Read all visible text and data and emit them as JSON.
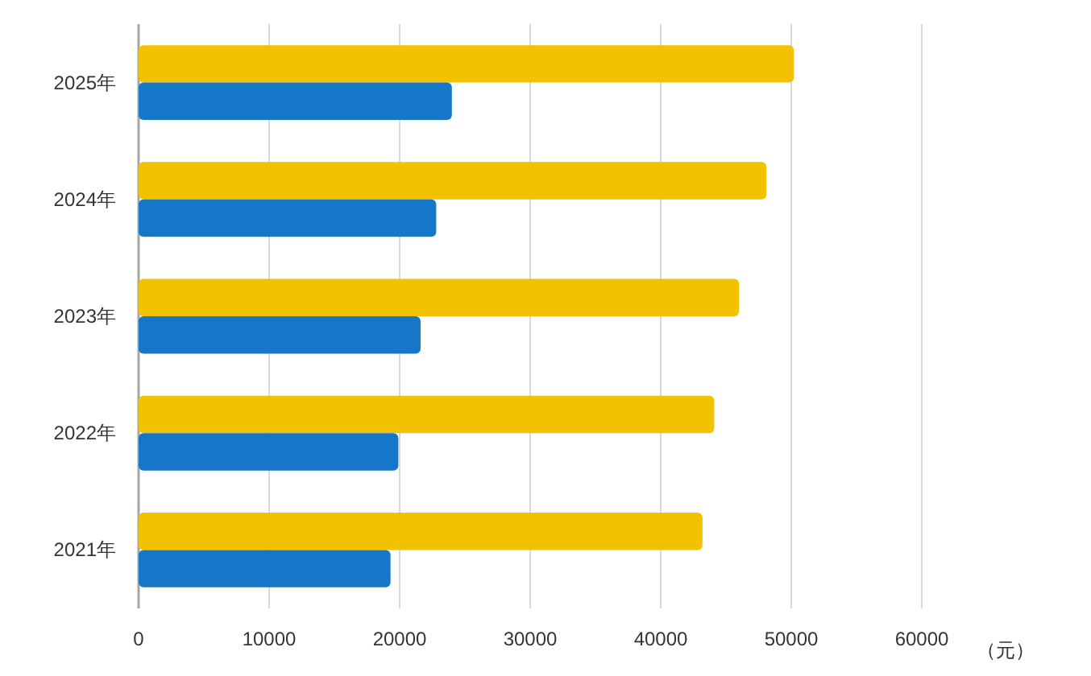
{
  "chart_data": {
    "type": "bar",
    "orientation": "horizontal",
    "categories": [
      "2025年",
      "2024年",
      "2023年",
      "2022年",
      "2021年"
    ],
    "xlabel": "（元）",
    "series": [
      {
        "color": "#f2c200",
        "values": [
          50200,
          48100,
          46000,
          44100,
          43200
        ]
      },
      {
        "color": "#1677c9",
        "values": [
          24000,
          22800,
          21600,
          19900,
          19300
        ]
      }
    ],
    "xlim": [
      0,
      60000
    ],
    "xticks": [
      0,
      10000,
      20000,
      30000,
      40000,
      50000,
      60000
    ],
    "grid": "x"
  }
}
